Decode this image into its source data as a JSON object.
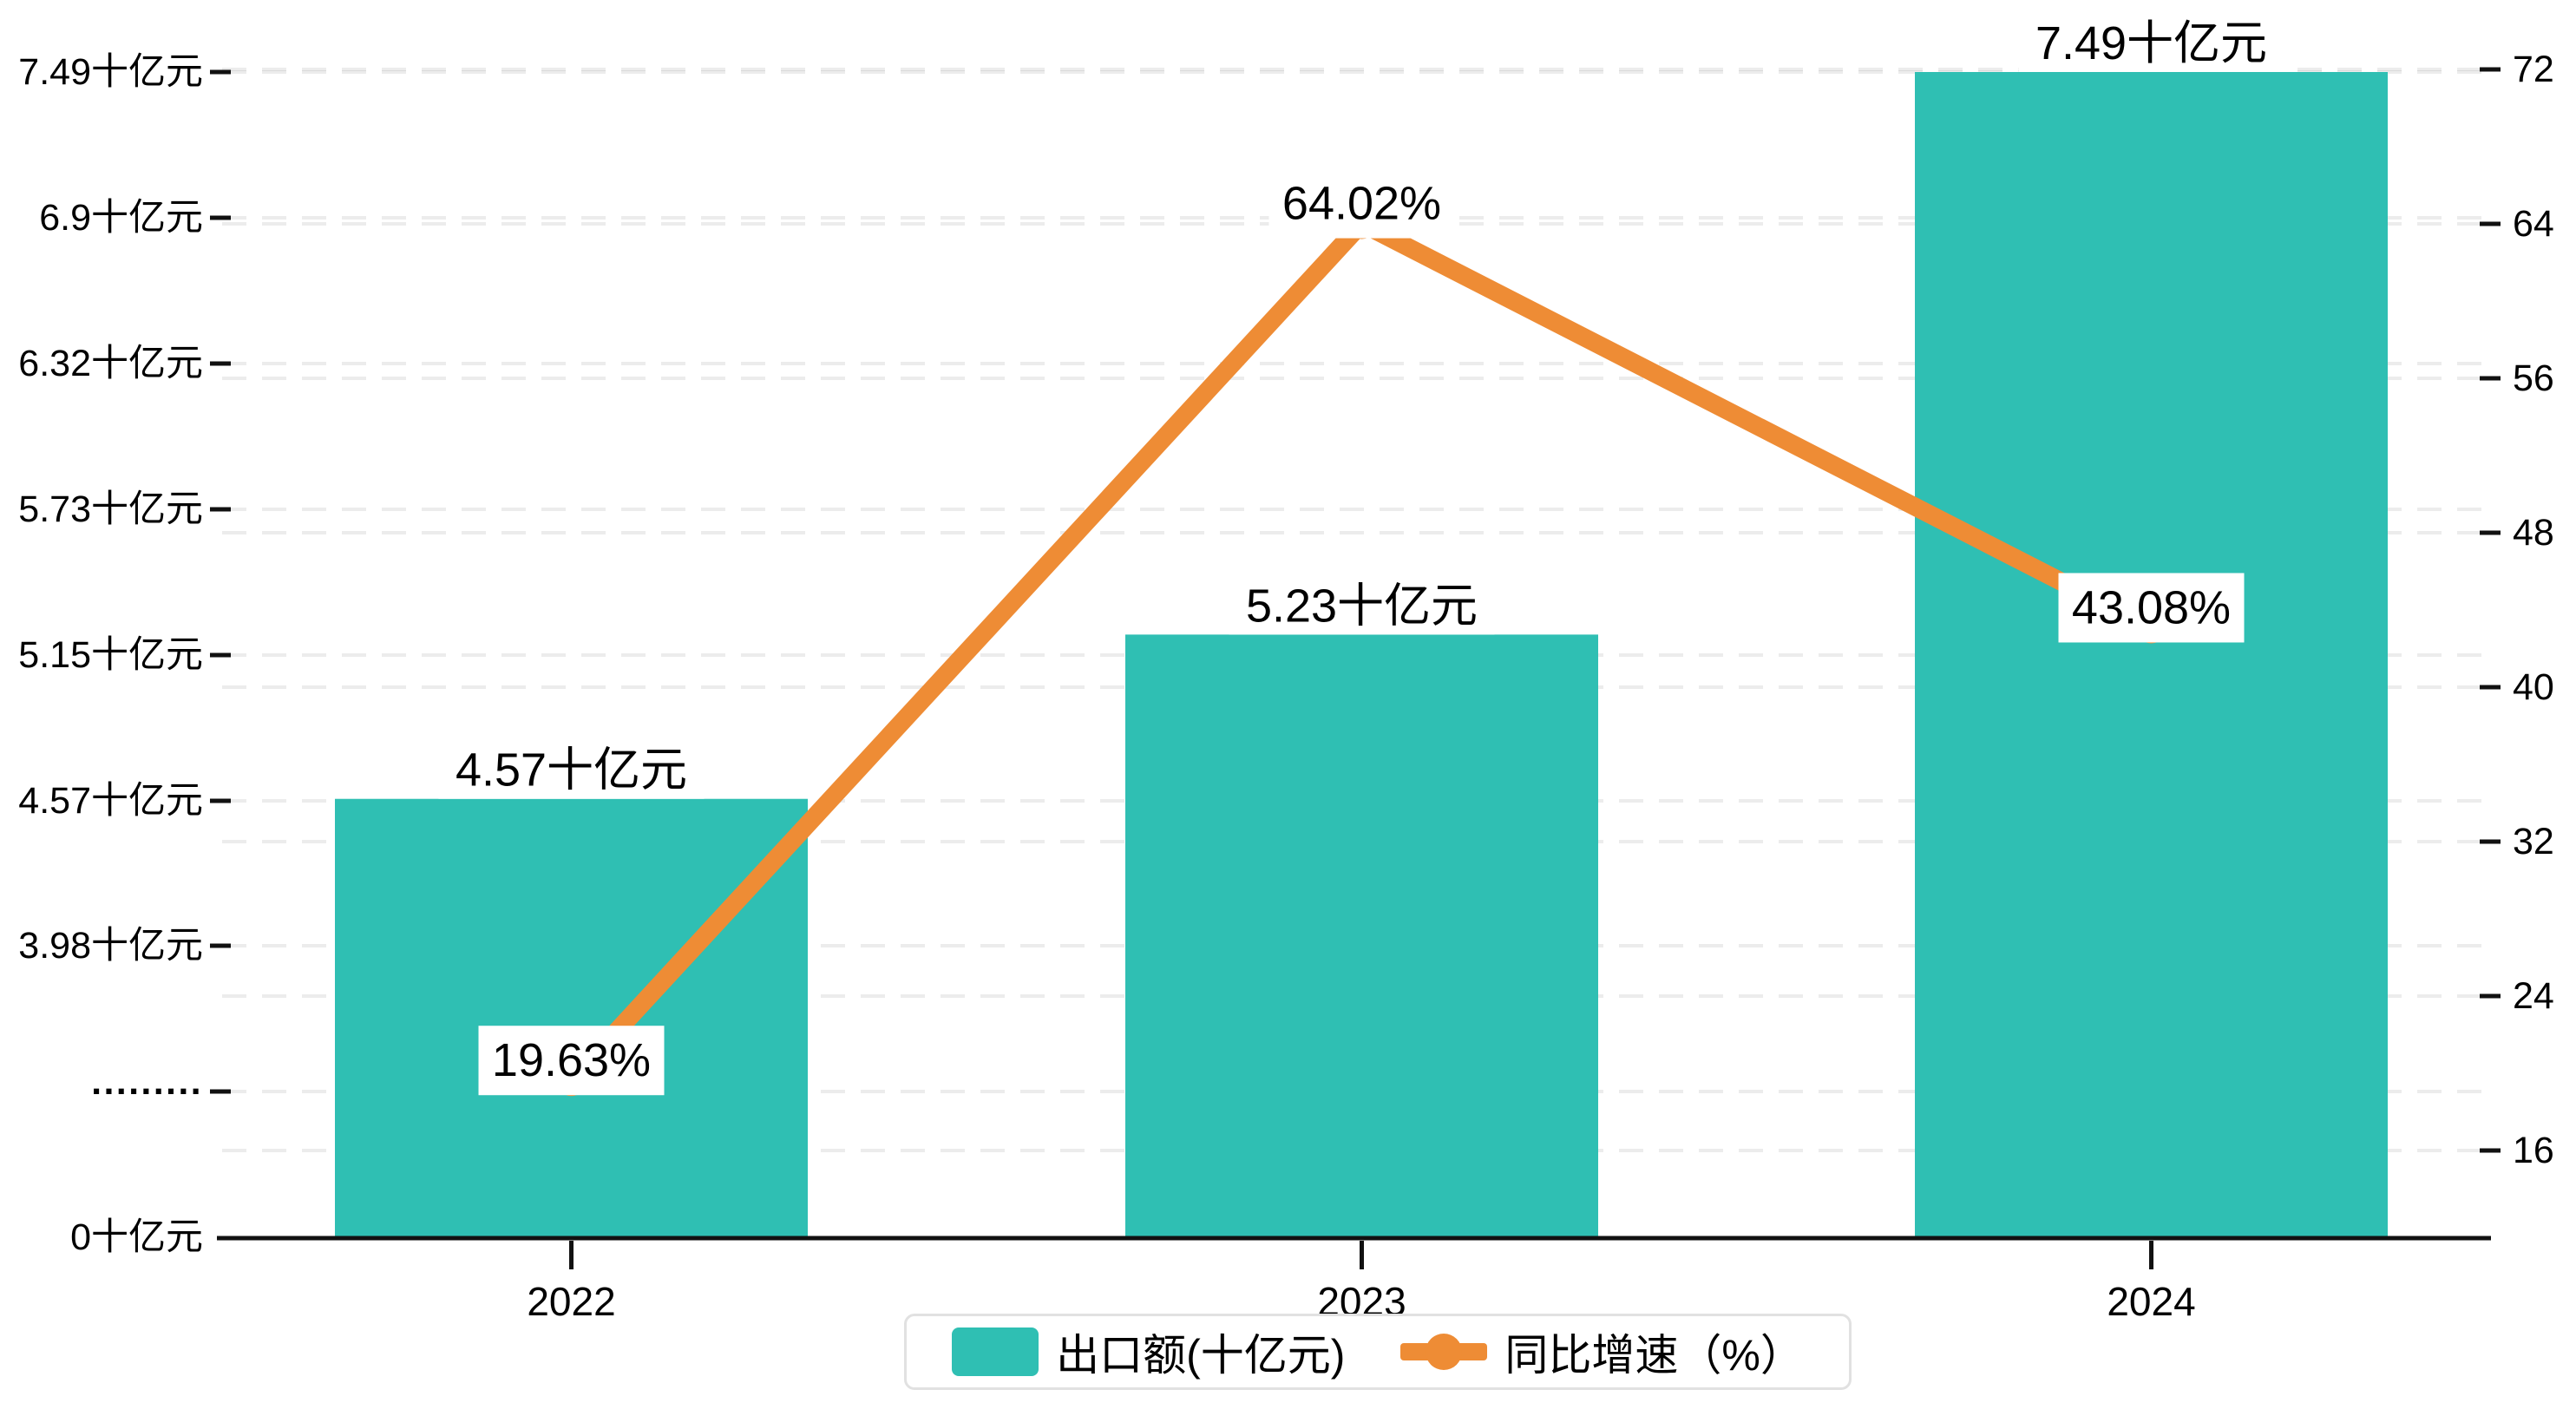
{
  "chart_data": {
    "type": "bar+line",
    "categories": [
      "2022",
      "2023",
      "2024"
    ],
    "series": [
      {
        "name": "出口额(十亿元)",
        "type": "bar",
        "color": "#2FBFB3",
        "values": [
          4.57,
          5.23,
          7.49
        ],
        "labels": [
          "4.57十亿元",
          "5.23十亿元",
          "7.49十亿元"
        ]
      },
      {
        "name": "同比增速（%）",
        "type": "line",
        "color": "#EE8C35",
        "values": [
          19.63,
          64.02,
          43.08
        ],
        "labels": [
          "19.63%",
          "64.02%",
          "43.08%"
        ]
      }
    ],
    "left_axis": {
      "unit": "十亿元",
      "broken_axis": true,
      "tick_labels": [
        "7.49十亿元",
        "6.9十亿元",
        "6.32十亿元",
        "5.73十亿元",
        "5.15十亿元",
        "4.57十亿元",
        "3.98十亿元",
        "·········",
        "0十亿元"
      ],
      "tick_values": [
        7.49,
        6.9,
        6.32,
        5.73,
        5.15,
        4.57,
        3.98,
        null,
        0
      ]
    },
    "right_axis": {
      "tick_labels": [
        "72",
        "64",
        "56",
        "48",
        "40",
        "32",
        "24",
        "16"
      ],
      "tick_values": [
        72,
        64,
        56,
        48,
        40,
        32,
        24,
        16
      ]
    },
    "legend": [
      {
        "label": "出口额(十亿元)",
        "marker": "bar-swatch",
        "color": "#2FBFB3"
      },
      {
        "label": "同比增速（%）",
        "marker": "line-dot",
        "color": "#EE8C35"
      }
    ],
    "grid": "dashed",
    "background": "#ffffff",
    "axis_color": "#111111"
  },
  "colors": {
    "bar": "#2FBFB3",
    "line": "#EE8C35",
    "gridline": "rgba(0,0,0,0.075)",
    "axis": "#111111",
    "label_bg": "#ffffff"
  }
}
